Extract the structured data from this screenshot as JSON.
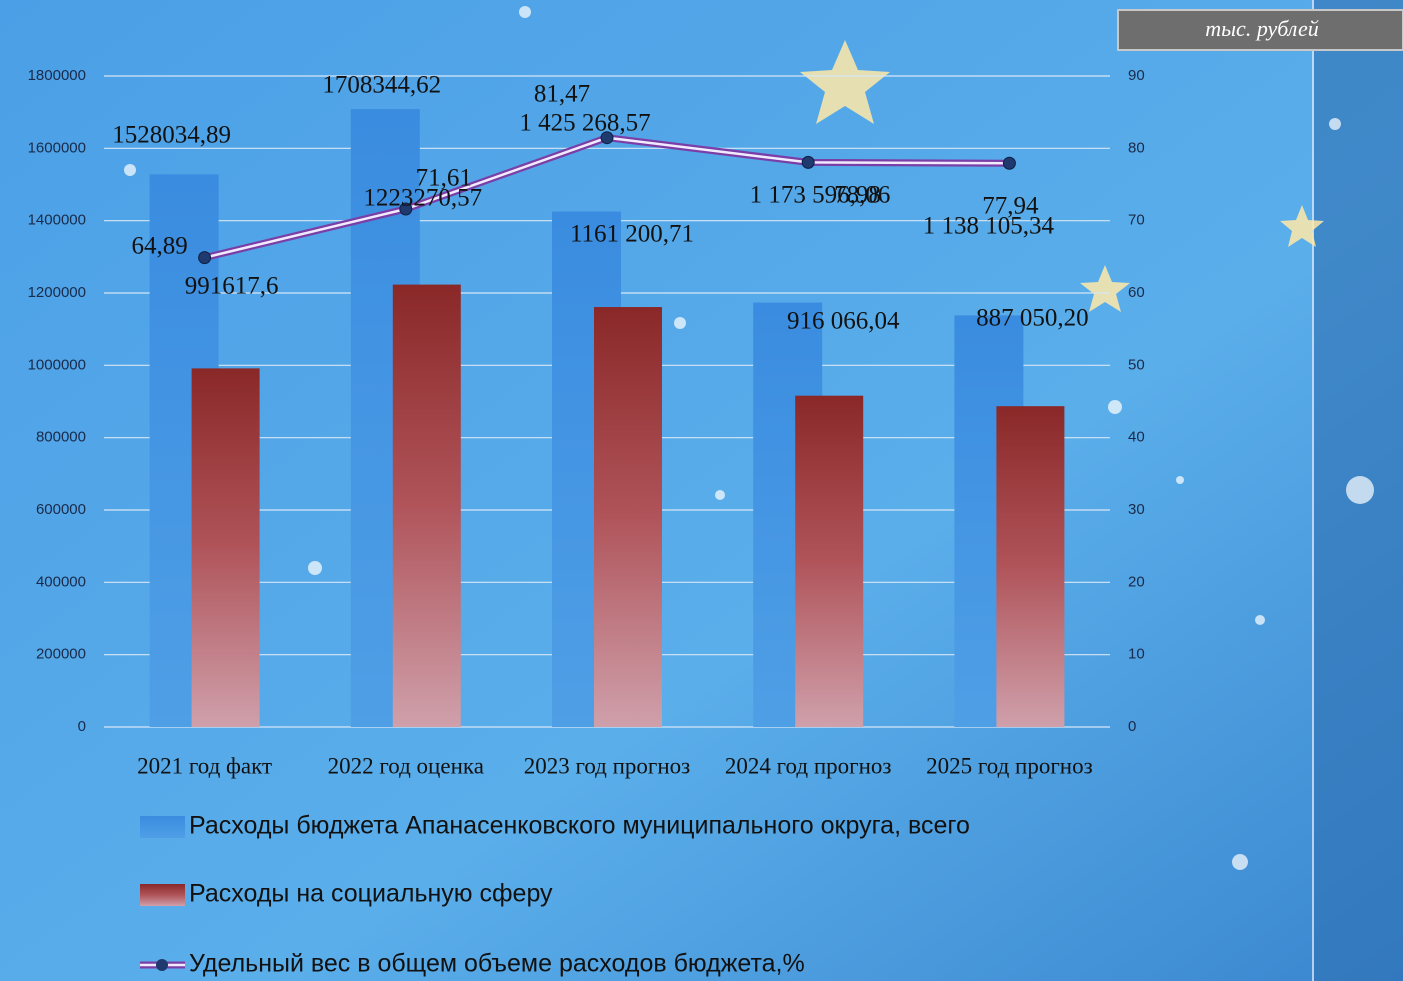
{
  "chart_data": {
    "type": "bar_line",
    "annotation": "тыс. рублей",
    "categories": [
      "2021 год факт",
      "2022 год оценка",
      "2023 год прогноз",
      "2024 год прогноз",
      "2025 год прогноз"
    ],
    "ylim": [
      0,
      1800000
    ],
    "yticks": [
      0,
      200000,
      400000,
      600000,
      800000,
      1000000,
      1200000,
      1400000,
      1600000,
      1800000
    ],
    "y2lim": [
      0,
      90
    ],
    "y2ticks": [
      0,
      10,
      20,
      30,
      40,
      50,
      60,
      70,
      80,
      90
    ],
    "grid": true,
    "series": [
      {
        "name": "Расходы бюджета Апанасенковского муниципального округа, всего",
        "color": "#3f92e2",
        "type": "bar",
        "values": [
          1528034.89,
          1708344.62,
          1425268.57,
          1173596.98,
          1138105.34
        ],
        "value_labels": [
          "1528034,89",
          "1708344,62",
          "1 425 268,57",
          "1 173 596,98",
          "1 138 105,34"
        ]
      },
      {
        "name": "Расходы на социальную сферу",
        "color": "#8e2c2c",
        "type": "bar",
        "values": [
          991617.6,
          1223270.57,
          1161200.71,
          916066.04,
          887050.2
        ],
        "value_labels": [
          "991617,6",
          "1223270,57",
          "1161 200,71",
          "916 066,04",
          "887 050,20"
        ]
      },
      {
        "name": "Удельный вес в общем объеме расходов бюджета,%",
        "color": "#7a3fa6",
        "type": "line",
        "axis": "y2",
        "values": [
          64.89,
          71.61,
          81.47,
          78.06,
          77.94
        ],
        "value_labels": [
          "64,89",
          "71,61",
          "81,47",
          "78,06",
          "77,94"
        ]
      }
    ]
  }
}
